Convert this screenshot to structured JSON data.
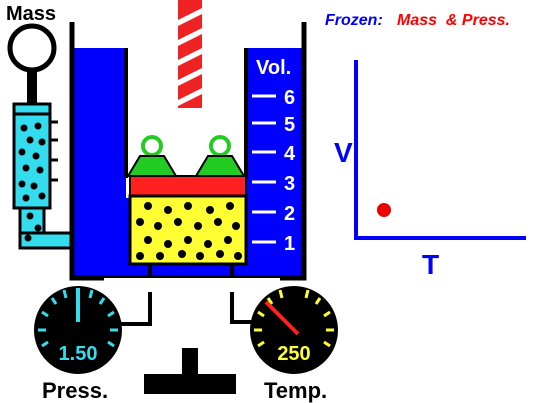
{
  "labels": {
    "mass": "Mass",
    "press": "Press.",
    "temp": "Temp.",
    "vol": "Vol.",
    "frozen_prefix": "Frozen:",
    "frozen_vars": "Mass  & Press."
  },
  "volume_scale": [
    "6",
    "5",
    "4",
    "3",
    "2",
    "1"
  ],
  "gauges": {
    "pressure": {
      "value": "1.50"
    },
    "temperature": {
      "value": "250"
    }
  },
  "graph": {
    "xlabel": "T",
    "ylabel": "V"
  },
  "colors": {
    "water": "#0000ff",
    "gas": "#ffff33",
    "piston": "#ff2020",
    "weights": "#22cc22",
    "tube": "#33ddee",
    "point": "#ee0000",
    "gauge_face": "#000000",
    "pressure_text": "#33ddee",
    "temperature_text": "#ffff33"
  },
  "chart_data": {
    "type": "scatter",
    "xlabel": "T",
    "ylabel": "V",
    "series": [
      {
        "x": [
          250
        ],
        "y": [
          2
        ]
      }
    ]
  }
}
